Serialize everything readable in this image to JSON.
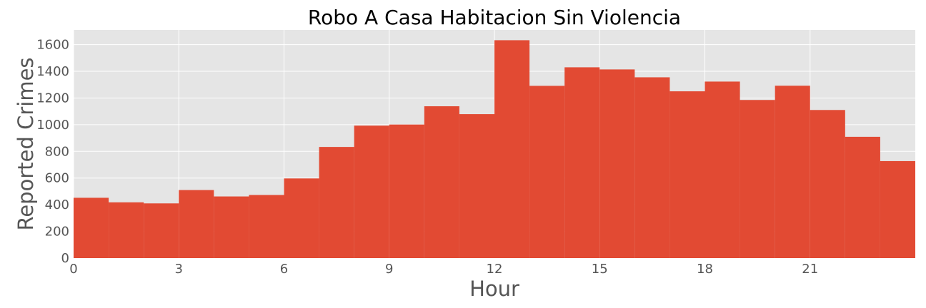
{
  "chart_data": {
    "type": "bar",
    "title": "Robo A Casa Habitacion Sin Violencia",
    "xlabel": "Hour",
    "ylabel": "Reported Crimes",
    "x_bins": [
      0,
      1,
      2,
      3,
      4,
      5,
      6,
      7,
      8,
      9,
      10,
      11,
      12,
      13,
      14,
      15,
      16,
      17,
      18,
      19,
      20,
      21,
      22,
      23
    ],
    "bin_width": 1,
    "values": [
      452,
      418,
      410,
      510,
      462,
      473,
      597,
      833,
      993,
      1001,
      1138,
      1079,
      1633,
      1291,
      1430,
      1414,
      1355,
      1250,
      1323,
      1185,
      1292,
      1110,
      909,
      727
    ],
    "xlim": [
      0,
      24
    ],
    "ylim": [
      0,
      1710
    ],
    "xticks": [
      0,
      3,
      6,
      9,
      12,
      15,
      18,
      21
    ],
    "yticks": [
      0,
      200,
      400,
      600,
      800,
      1000,
      1200,
      1400,
      1600
    ],
    "grid": true,
    "style": "ggplot",
    "colors": {
      "bar": "#e24a33",
      "plot_background": "#e5e5e5",
      "grid": "#ffffff",
      "tick_text": "#555555",
      "title_text": "#000000"
    }
  }
}
